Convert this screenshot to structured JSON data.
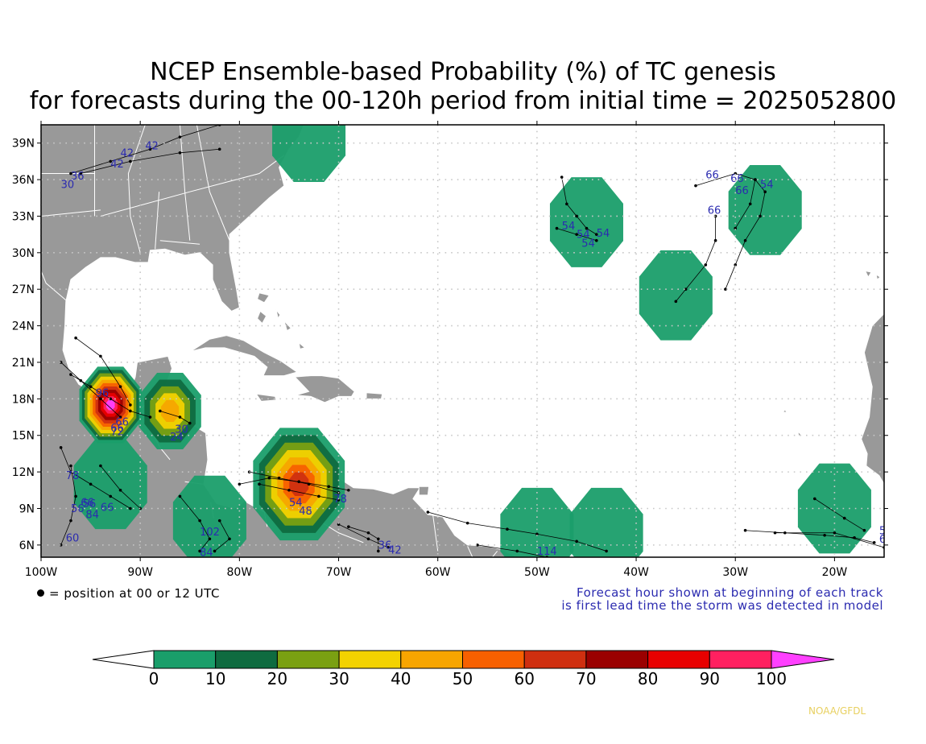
{
  "title": {
    "line1": "NCEP Ensemble-based Probability (%) of TC genesis",
    "line2": "for forecasts during the 00-120h period from initial time = 2025052800"
  },
  "axes": {
    "lat_labels": [
      "39N",
      "36N",
      "33N",
      "30N",
      "27N",
      "24N",
      "21N",
      "18N",
      "15N",
      "12N",
      "9N",
      "6N"
    ],
    "lat_values": [
      39,
      36,
      33,
      30,
      27,
      24,
      21,
      18,
      15,
      12,
      9,
      6
    ],
    "lon_labels": [
      "100W",
      "90W",
      "80W",
      "70W",
      "60W",
      "50W",
      "40W",
      "30W",
      "20W"
    ],
    "lon_values": [
      -100,
      -90,
      -80,
      -70,
      -60,
      -50,
      -40,
      -30,
      -20
    ],
    "lon_range": [
      -100,
      -15
    ],
    "lat_range": [
      5,
      40.5
    ],
    "grid": "dotted"
  },
  "notes": {
    "dot_legend": "= position at 00 or 12 UTC",
    "forecast_hour_1": "Forecast hour shown at beginning of each track",
    "forecast_hour_2": "is first lead time the storm was detected in model"
  },
  "colorbar": {
    "labels": [
      "0",
      "10",
      "20",
      "30",
      "40",
      "50",
      "60",
      "70",
      "80",
      "90",
      "100"
    ],
    "colors": [
      "#ffffff",
      "#1a9e6a",
      "#0f6b40",
      "#7aa012",
      "#f3d200",
      "#f7a500",
      "#f76000",
      "#cf2f10",
      "#9a0000",
      "#e80000",
      "#ff2060",
      "#ff40ff"
    ]
  },
  "colors": {
    "land": "#999999",
    "ocean": "#ffffff",
    "border": "#ffffff",
    "track": "#000000",
    "track_label": "#2b2bb0"
  },
  "regions": [
    {
      "lon": -27,
      "lat": 33.5,
      "level": 1
    },
    {
      "lon": -36,
      "lat": 26.5,
      "level": 1
    },
    {
      "lon": -45,
      "lat": 32.5,
      "level": 1
    },
    {
      "lon": -20,
      "lat": 9,
      "level": 1
    },
    {
      "lon": -50,
      "lat": 7,
      "level": 1
    },
    {
      "lon": -43,
      "lat": 7,
      "level": 1
    },
    {
      "lon": -93,
      "lat": 11,
      "level": 1
    },
    {
      "lon": -83,
      "lat": 8,
      "level": 1
    },
    {
      "lon": -74,
      "lat": 11,
      "level": 2
    },
    {
      "lon": -87,
      "lat": 17,
      "level": 3
    },
    {
      "lon": -93,
      "lat": 17.5,
      "level": 4
    },
    {
      "lon": -73,
      "lat": 39.5,
      "level": 1
    }
  ],
  "track_labels": [
    "36",
    "30",
    "42",
    "42",
    "42",
    "54",
    "66",
    "66",
    "66",
    "54",
    "54",
    "54",
    "54",
    "66",
    "66",
    "96",
    "72",
    "24",
    "30",
    "66",
    "54",
    "48",
    "78",
    "56",
    "84",
    "66",
    "102",
    "84",
    "60",
    "36",
    "42",
    "114",
    "54",
    "60",
    "78",
    "56",
    "66"
  ],
  "credit": "NOAA/GFDL"
}
